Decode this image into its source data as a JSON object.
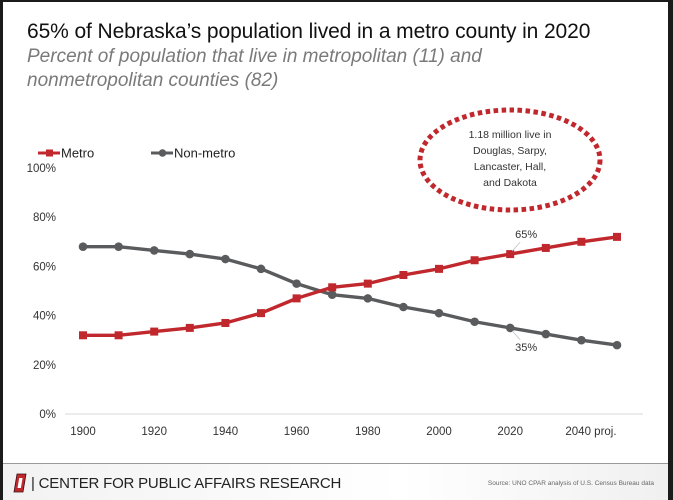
{
  "header": {
    "title": "65% of Nebraska’s population lived in a metro county in 2020",
    "subtitle": "Percent of population that live in metropolitan (11) and nonmetropolitan counties (82)"
  },
  "chart_data": {
    "type": "line",
    "title": "65% of Nebraska’s population lived in a metro county in 2020",
    "subtitle": "Percent of population that live in metropolitan (11) and nonmetropolitan counties (82)",
    "xlabel": "",
    "ylabel": "",
    "x": [
      1900,
      1910,
      1920,
      1930,
      1940,
      1950,
      1960,
      1970,
      1980,
      1990,
      2000,
      2010,
      2020,
      2030,
      2040,
      2050
    ],
    "x_tick_values": [
      1900,
      1920,
      1940,
      1960,
      1980,
      2000,
      2020,
      2040
    ],
    "x_tick_labels": [
      "1900",
      "1920",
      "1940",
      "1960",
      "1980",
      "2000",
      "2020",
      "2040 proj."
    ],
    "y_tick_values": [
      0,
      20,
      40,
      60,
      80,
      100
    ],
    "y_tick_labels": [
      "0%",
      "20%",
      "40%",
      "60%",
      "80%",
      "100%"
    ],
    "ylim": [
      0,
      100
    ],
    "xlim": [
      1900,
      2050
    ],
    "grid": false,
    "legend_position": "top-left",
    "series": [
      {
        "name": "Metro",
        "color": "#c0282d",
        "marker": "square",
        "values": [
          32,
          32,
          33.5,
          35,
          37,
          41,
          47,
          51.5,
          53,
          56.5,
          59,
          62.5,
          65,
          67.5,
          70,
          72
        ]
      },
      {
        "name": "Non-metro",
        "color": "#5a5b5d",
        "marker": "circle",
        "values": [
          68,
          68,
          66.5,
          65,
          63,
          59,
          53,
          48.5,
          47,
          43.5,
          41,
          37.5,
          35,
          32.5,
          30,
          28
        ]
      }
    ],
    "annotations": [
      {
        "text": "65%",
        "series": "Metro",
        "x": 2020
      },
      {
        "text": "35%",
        "series": "Non-metro",
        "x": 2020
      }
    ],
    "callout": {
      "lines": [
        "1.18 million live in",
        "Douglas, Sarpy,",
        "Lancaster, Hall,",
        "and Dakota"
      ],
      "border_color": "#c0282d"
    }
  },
  "footer": {
    "organization": "| CENTER FOR PUBLIC AFFAIRS RESEARCH",
    "source": "Source: UNO CPAR analysis of U.S. Census Bureau data",
    "logo_color": "#c0282d"
  }
}
